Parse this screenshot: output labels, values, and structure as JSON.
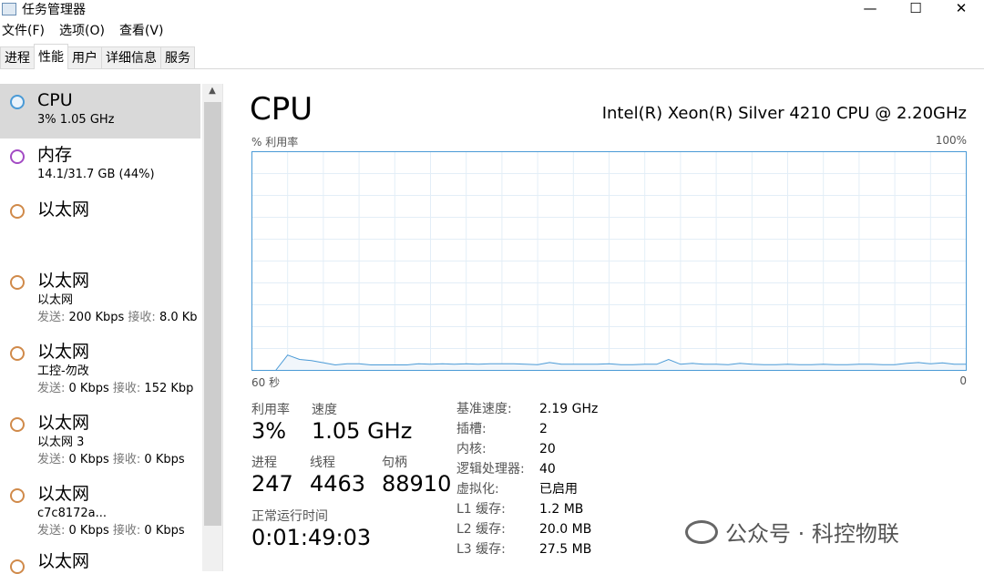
{
  "window": {
    "title": "任务管理器",
    "minimize": "—",
    "maximize": "☐",
    "close": "✕"
  },
  "menu": [
    "文件(F)",
    "选项(O)",
    "查看(V)"
  ],
  "tabs": [
    "进程",
    "性能",
    "用户",
    "详细信息",
    "服务"
  ],
  "active_tab": 1,
  "sidebar": {
    "items": [
      {
        "title": "CPU",
        "sub": "3% 1.05 GHz",
        "line3": "",
        "color": "#4a9ad6",
        "selected": true
      },
      {
        "title": "内存",
        "sub": "14.1/31.7 GB (44%)",
        "line3": "",
        "color": "#a34bc4"
      },
      {
        "title": "以太网",
        "sub": "",
        "line3": "",
        "color": "#d08a4a"
      },
      {
        "title": "以太网",
        "sub": "以太网",
        "send_label": "发送:",
        "send": "200 Kbps",
        "recv_label": "接收:",
        "recv": "8.0 Kb",
        "color": "#d08a4a"
      },
      {
        "title": "以太网",
        "sub": "工控-勿改",
        "send_label": "发送:",
        "send": "0 Kbps",
        "recv_label": "接收:",
        "recv": "152 Kbp",
        "color": "#d08a4a"
      },
      {
        "title": "以太网",
        "sub": "以太网 3",
        "send_label": "发送:",
        "send": "0 Kbps",
        "recv_label": "接收:",
        "recv": "0 Kbps",
        "color": "#d08a4a"
      },
      {
        "title": "以太网",
        "sub": "c7c8172a...",
        "send_label": "发送:",
        "send": "0 Kbps",
        "recv_label": "接收:",
        "recv": "0 Kbps",
        "color": "#d08a4a"
      },
      {
        "title": "以太网",
        "sub": "",
        "color": "#d08a4a"
      }
    ]
  },
  "main": {
    "title": "CPU",
    "model": "Intel(R) Xeon(R) Silver 4210 CPU @ 2.20GHz",
    "y_label": "% 利用率",
    "y_max_label": "100%",
    "x_left_label": "60 秒",
    "x_right_label": "0",
    "stats": {
      "util_label": "利用率",
      "util": "3%",
      "speed_label": "速度",
      "speed": "1.05 GHz",
      "proc_label": "进程",
      "proc": "247",
      "thread_label": "线程",
      "thread": "4463",
      "handle_label": "句柄",
      "handle": "88910",
      "uptime_label": "正常运行时间",
      "uptime": "0:01:49:03"
    },
    "specs": [
      {
        "k": "基准速度:",
        "v": "2.19 GHz"
      },
      {
        "k": "插槽:",
        "v": "2"
      },
      {
        "k": "内核:",
        "v": "20"
      },
      {
        "k": "逻辑处理器:",
        "v": "40"
      },
      {
        "k": "虚拟化:",
        "v": "已启用"
      },
      {
        "k": "L1 缓存:",
        "v": "1.2 MB"
      },
      {
        "k": "L2 缓存:",
        "v": "20.0 MB"
      },
      {
        "k": "L3 缓存:",
        "v": "27.5 MB"
      }
    ]
  },
  "chart_data": {
    "type": "area",
    "xlabel": "",
    "ylabel": "% 利用率",
    "xlim": [
      60,
      0
    ],
    "ylim": [
      0,
      100
    ],
    "grid": true,
    "line_color": "#4a9ad6",
    "x": [
      58,
      57,
      56,
      55,
      54,
      53,
      52,
      51,
      50,
      49,
      48,
      47,
      46,
      45,
      44,
      43,
      42,
      41,
      40,
      39,
      38,
      37,
      36,
      35,
      34,
      33,
      32,
      31,
      30,
      29,
      28,
      27,
      26,
      25,
      24,
      23,
      22,
      21,
      20,
      19,
      18,
      17,
      16,
      15,
      14,
      13,
      12,
      11,
      10,
      9,
      8,
      7,
      6,
      5,
      4,
      3,
      2,
      1,
      0
    ],
    "values": [
      0,
      7,
      5,
      4.5,
      3.5,
      2.5,
      3,
      3,
      2.5,
      2.5,
      2.5,
      2.5,
      3,
      2.8,
      3,
      2.8,
      3,
      2.8,
      3,
      3,
      3,
      2.8,
      2.6,
      3.6,
      2.8,
      2.8,
      2.8,
      2.8,
      3,
      2.6,
      2.6,
      2.8,
      2.8,
      5,
      2.8,
      3.2,
      2.8,
      2.8,
      2.6,
      3.2,
      2.8,
      2.6,
      2.6,
      2.8,
      2.6,
      2.6,
      2.8,
      2.6,
      2.6,
      2.8,
      2.8,
      2.6,
      2.6,
      3.2,
      3.6,
      3,
      3.4,
      2.8,
      2.8
    ]
  },
  "watermark": "公众号 · 科控物联"
}
